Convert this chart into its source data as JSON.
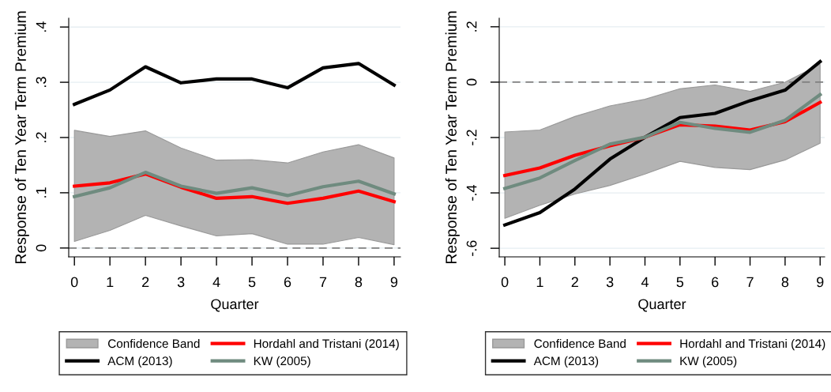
{
  "chart_data": [
    {
      "type": "line",
      "xlabel": "Quarter",
      "ylabel": "Response of Ten Year Term Premium",
      "x": [
        0,
        1,
        2,
        3,
        4,
        5,
        6,
        7,
        8,
        9
      ],
      "series": [
        {
          "name": "ACM (2013)",
          "color": "#000000",
          "values": [
            0.26,
            0.286,
            0.328,
            0.299,
            0.306,
            0.306,
            0.29,
            0.326,
            0.334,
            0.295
          ]
        },
        {
          "name": "Hordahl and Tristani (2014)",
          "color": "#ff0000",
          "values": [
            0.112,
            0.118,
            0.134,
            0.11,
            0.09,
            0.093,
            0.081,
            0.09,
            0.103,
            0.084
          ],
          "lower": [
            0.012,
            0.032,
            0.059,
            0.04,
            0.022,
            0.026,
            0.007,
            0.007,
            0.019,
            0.006
          ],
          "upper": [
            0.213,
            0.202,
            0.212,
            0.181,
            0.159,
            0.16,
            0.154,
            0.174,
            0.187,
            0.163
          ]
        },
        {
          "name": "KW (2005)",
          "color": "#6f8b7f",
          "values": [
            0.093,
            0.109,
            0.137,
            0.112,
            0.099,
            0.109,
            0.095,
            0.111,
            0.121,
            0.098
          ]
        }
      ],
      "annotations": [
        "Confidence Band"
      ],
      "xlim": [
        -0.16,
        9.18
      ],
      "xticks": [
        0,
        1,
        2,
        3,
        4,
        5,
        6,
        7,
        8,
        9
      ],
      "ylim": [
        -0.016,
        0.416
      ],
      "yticks": [
        0,
        {
          "value": 0.1,
          "label": ".1"
        },
        {
          "value": 0.2,
          "label": ".2"
        },
        {
          "value": 0.3,
          "label": ".3"
        },
        {
          "value": 0.4,
          "label": ".4"
        }
      ],
      "ref_lines": [
        {
          "axis": "y",
          "value": 0,
          "color": "#808080",
          "line_style": "dashed"
        }
      ],
      "grid": "y",
      "legend": "bottom",
      "marker": "none",
      "line_style": "solid"
    },
    {
      "type": "line",
      "xlabel": "Quarter",
      "ylabel": "Response of Ten Year Term Premium",
      "x": [
        0,
        1,
        2,
        3,
        4,
        5,
        6,
        7,
        8,
        9
      ],
      "series": [
        {
          "name": "ACM (2013)",
          "color": "#000000",
          "values": [
            -0.516,
            -0.471,
            -0.386,
            -0.278,
            -0.199,
            -0.128,
            -0.113,
            -0.067,
            -0.029,
            0.074
          ]
        },
        {
          "name": "Hordahl and Tristani (2014)",
          "color": "#ff0000",
          "values": [
            -0.337,
            -0.31,
            -0.264,
            -0.23,
            -0.199,
            -0.154,
            -0.159,
            -0.173,
            -0.143,
            -0.073
          ],
          "lower": [
            -0.492,
            -0.445,
            -0.404,
            -0.373,
            -0.332,
            -0.286,
            -0.308,
            -0.316,
            -0.281,
            -0.221
          ],
          "upper": [
            -0.18,
            -0.173,
            -0.124,
            -0.086,
            -0.062,
            -0.024,
            -0.01,
            -0.033,
            0,
            0.065
          ]
        },
        {
          "name": "KW (2005)",
          "color": "#6f8b7f",
          "values": [
            -0.384,
            -0.346,
            -0.283,
            -0.224,
            -0.199,
            -0.145,
            -0.167,
            -0.181,
            -0.138,
            -0.045
          ]
        }
      ],
      "annotations": [
        "Confidence Band"
      ],
      "xlim": [
        -0.16,
        9.13
      ],
      "xticks": [
        0,
        1,
        2,
        3,
        4,
        5,
        6,
        7,
        8,
        9
      ],
      "ylim": [
        -0.631,
        0.231
      ],
      "yticks": [
        {
          "value": -0.6,
          "label": "-.6"
        },
        {
          "value": -0.4,
          "label": "-.4"
        },
        {
          "value": -0.2,
          "label": "-.2"
        },
        0,
        {
          "value": 0.2,
          "label": ".2"
        }
      ],
      "ref_lines": [
        {
          "axis": "y",
          "value": 0,
          "color": "#808080",
          "line_style": "dashed"
        }
      ],
      "grid": "y",
      "legend": "bottom",
      "marker": "none",
      "line_style": "solid"
    }
  ]
}
